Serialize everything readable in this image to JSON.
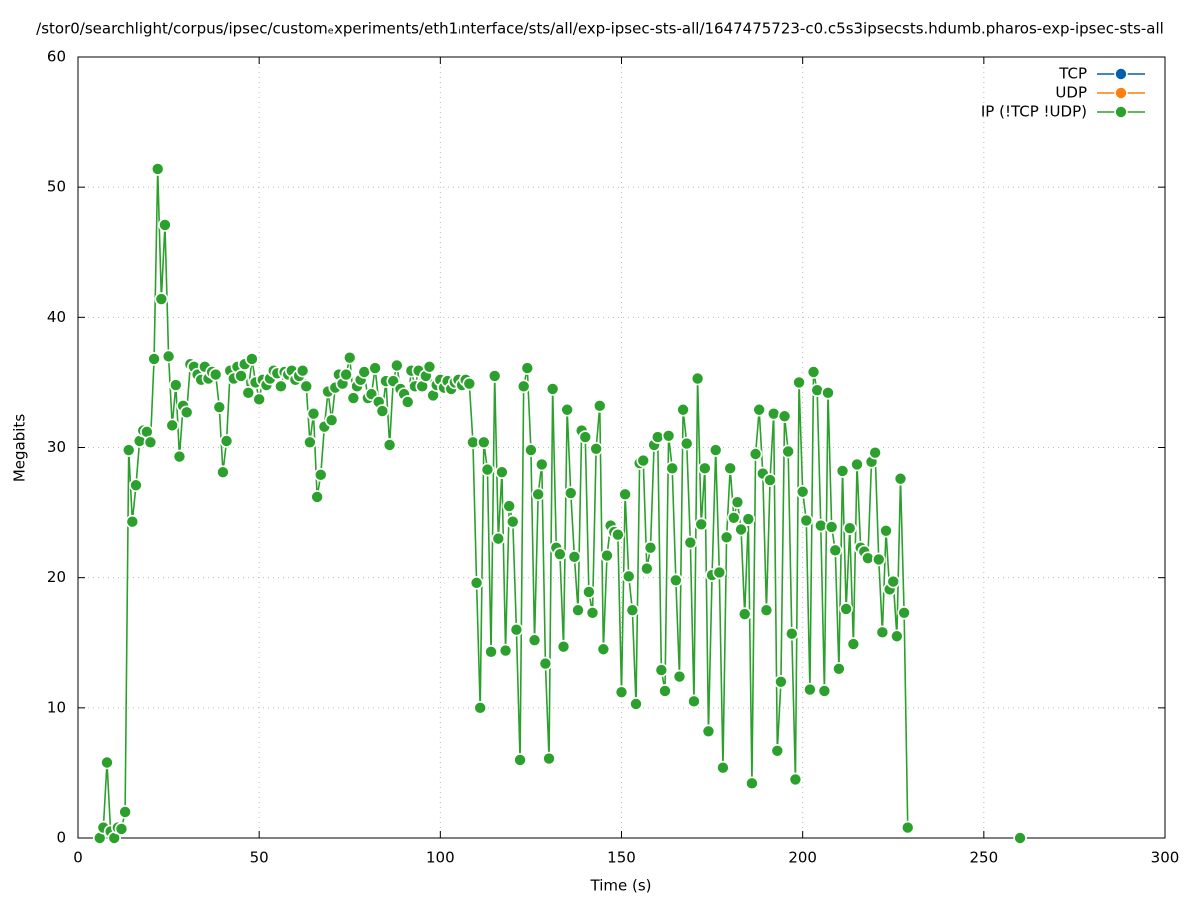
{
  "chart_data": {
    "type": "line",
    "title": "/stor0/searchlight/corpus/ipsec/customₑxperiments/eth1ᵢnterface/sts/all/exp-ipsec-sts-all/1647475723-c0.c5s3ipsecsts.hdumb.pharos-exp-ipsec-sts-all",
    "xlabel": "Time (s)",
    "ylabel": "Megabits",
    "xlim": [
      0,
      300
    ],
    "xticks": [
      0,
      50,
      100,
      150,
      200,
      250,
      300
    ],
    "ylim": [
      0,
      60
    ],
    "yticks": [
      0,
      10,
      20,
      30,
      40,
      50,
      60
    ],
    "grid": true,
    "legend": "top-right",
    "series": [
      {
        "name": "TCP",
        "color": "#0060ad",
        "x": [],
        "values": []
      },
      {
        "name": "UDP",
        "color": "#ff7f0e",
        "x": [],
        "values": []
      },
      {
        "name": "IP (!TCP  !UDP)",
        "color": "#2ca02c",
        "x": [
          6,
          7,
          8,
          9,
          10,
          11,
          12,
          13,
          14,
          15,
          16,
          17,
          18,
          19,
          20,
          21,
          22,
          23,
          24,
          25,
          26,
          27,
          28,
          29,
          30,
          31,
          32,
          33,
          34,
          35,
          36,
          37,
          38,
          39,
          40,
          41,
          42,
          43,
          44,
          45,
          46,
          47,
          48,
          49,
          50,
          51,
          52,
          53,
          54,
          55,
          56,
          57,
          58,
          59,
          60,
          61,
          62,
          63,
          64,
          65,
          66,
          67,
          68,
          69,
          70,
          71,
          72,
          73,
          74,
          75,
          76,
          77,
          78,
          79,
          80,
          81,
          82,
          83,
          84,
          85,
          86,
          87,
          88,
          89,
          90,
          91,
          92,
          93,
          94,
          95,
          96,
          97,
          98,
          99,
          100,
          101,
          102,
          103,
          104,
          105,
          106,
          107,
          108,
          109,
          110,
          111,
          112,
          113,
          114,
          115,
          116,
          117,
          118,
          119,
          120,
          121,
          122,
          123,
          124,
          125,
          126,
          127,
          128,
          129,
          130,
          131,
          132,
          133,
          134,
          135,
          136,
          137,
          138,
          139,
          140,
          141,
          142,
          143,
          144,
          145,
          146,
          147,
          148,
          149,
          150,
          151,
          152,
          153,
          154,
          155,
          156,
          157,
          158,
          159,
          160,
          161,
          162,
          163,
          164,
          165,
          166,
          167,
          168,
          169,
          170,
          171,
          172,
          173,
          174,
          175,
          176,
          177,
          178,
          179,
          180,
          181,
          182,
          183,
          184,
          185,
          186,
          187,
          188,
          189,
          190,
          191,
          192,
          193,
          194,
          195,
          196,
          197,
          198,
          199,
          200,
          201,
          202,
          203,
          204,
          205,
          206,
          207,
          208,
          209,
          210,
          211,
          212,
          213,
          214,
          215,
          216,
          217,
          218,
          219,
          220,
          221,
          222,
          223,
          224,
          225,
          226,
          227,
          228,
          229,
          230,
          260
        ],
        "values": [
          0,
          0.8,
          5.8,
          0.5,
          0,
          0.8,
          0.7,
          2,
          29.8,
          24.3,
          27.1,
          30.5,
          31.3,
          31.2,
          30.4,
          36.8,
          51.4,
          41.4,
          47.1,
          37,
          31.7,
          34.8,
          29.3,
          33.2,
          32.7,
          36.4,
          36.2,
          35.6,
          35.2,
          36.2,
          35.3,
          35.8,
          35.6,
          33.1,
          28.1,
          30.5,
          35.9,
          35.3,
          36.2,
          35.5,
          36.4,
          34.2,
          36.8,
          35,
          33.7,
          35.2,
          34.8,
          35.3,
          35.9,
          35.7,
          34.7,
          35.8,
          35.6,
          35.9,
          35.2,
          35.5,
          35.9,
          34.7,
          30.4,
          32.6,
          26.2,
          27.9,
          31.6,
          34.3,
          32.1,
          34.6,
          35.6,
          34.9,
          35.6,
          36.9,
          33.8,
          34.7,
          35.2,
          35.8,
          33.8,
          34.1,
          36.1,
          33.5,
          32.8,
          35.1,
          30.2,
          35.1,
          36.3,
          34.5,
          34.1,
          33.5,
          35.9,
          34.7,
          35.9,
          34.7,
          35.5,
          36.2,
          34,
          34.8,
          35.2,
          34.6,
          35.1,
          34.5,
          35,
          35.2,
          34.8,
          35.2,
          34.9,
          30.4,
          19.6,
          10,
          30.4,
          28.3,
          14.3,
          35.5,
          23,
          28.1,
          14.4,
          25.5,
          24.3,
          16,
          6,
          34.7,
          36.1,
          29.8,
          15.2,
          26.4,
          28.7,
          13.4,
          6.1,
          34.5,
          22.3,
          21.8,
          14.7,
          32.9,
          26.5,
          21.6,
          17.5,
          31.3,
          30.8,
          18.9,
          17.3,
          29.9,
          33.2,
          14.5,
          21.7,
          24,
          23.5,
          23.3,
          11.2,
          26.4,
          20.1,
          17.5,
          10.3,
          28.8,
          29,
          20.7,
          22.3,
          30.2,
          30.8,
          12.9,
          11.3,
          30.9,
          28.4,
          19.8,
          12.4,
          32.9,
          30.3,
          22.7,
          10.5,
          35.3,
          24.1,
          28.4,
          8.2,
          20.2,
          29.8,
          20.4,
          5.4,
          23.1,
          28.4,
          24.6,
          25.8,
          23.7,
          17.2,
          24.5,
          4.2,
          29.5,
          32.9,
          28,
          17.5,
          27.5,
          32.6,
          6.7,
          12,
          32.4,
          29.7,
          15.7,
          4.5,
          35,
          26.6,
          24.4,
          11.4,
          35.8,
          34.4,
          24,
          11.3,
          34.2,
          23.9,
          22.1,
          13,
          28.2,
          17.6,
          23.8,
          14.9,
          28.7,
          22.3,
          22,
          21.5,
          28.9,
          29.6,
          21.4,
          15.8,
          23.6,
          19.1,
          19.7,
          15.5,
          27.6,
          17.3,
          0.8,
          null,
          0
        ]
      }
    ]
  }
}
